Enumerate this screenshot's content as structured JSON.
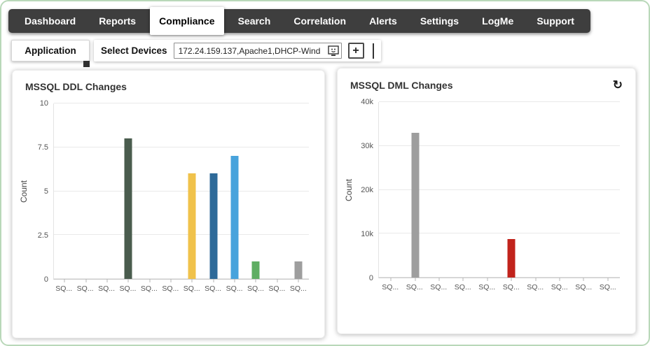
{
  "nav": {
    "items": [
      {
        "label": "Dashboard",
        "active": false
      },
      {
        "label": "Reports",
        "active": false
      },
      {
        "label": "Compliance",
        "active": true
      },
      {
        "label": "Search",
        "active": false
      },
      {
        "label": "Correlation",
        "active": false
      },
      {
        "label": "Alerts",
        "active": false
      },
      {
        "label": "Settings",
        "active": false
      },
      {
        "label": "LogMe",
        "active": false
      },
      {
        "label": "Support",
        "active": false
      }
    ]
  },
  "toolbar": {
    "application_tab": "Application",
    "select_devices_label": "Select Devices",
    "device_input_value": "172.24.159.137,Apache1,DHCP-Wind",
    "add_button_label": "+"
  },
  "icons": {
    "refresh": "↻",
    "device_picker": "device-picker-icon"
  },
  "chart_data": [
    {
      "type": "bar",
      "title": "MSSQL DDL Changes",
      "xlabel": "",
      "ylabel": "Count",
      "ylim": [
        0,
        10
      ],
      "grid": true,
      "legend": "none",
      "yticks": [
        {
          "label": "0",
          "value": 0
        },
        {
          "label": "2.5",
          "value": 2.5
        },
        {
          "label": "5",
          "value": 5
        },
        {
          "label": "7.5",
          "value": 7.5
        },
        {
          "label": "10",
          "value": 10
        }
      ],
      "categories": [
        "SQ...",
        "SQ...",
        "SQ...",
        "SQ...",
        "SQ...",
        "SQ...",
        "SQ...",
        "SQ...",
        "SQ...",
        "SQ...",
        "SQ...",
        "SQ..."
      ],
      "values": [
        0,
        0,
        0,
        8,
        0,
        0,
        6,
        6,
        7,
        1,
        0,
        1
      ],
      "bar_colors": [
        "",
        "",
        "",
        "#4a5c4e",
        "",
        "",
        "#f0c24b",
        "#2e6a99",
        "#48a3dc",
        "#5fae63",
        "",
        "#9e9e9e"
      ]
    },
    {
      "type": "bar",
      "title": "MSSQL DML Changes",
      "xlabel": "",
      "ylabel": "Count",
      "ylim": [
        0,
        40000
      ],
      "grid": true,
      "legend": "none",
      "yticks": [
        {
          "label": "0",
          "value": 0
        },
        {
          "label": "10k",
          "value": 10000
        },
        {
          "label": "20k",
          "value": 20000
        },
        {
          "label": "30k",
          "value": 30000
        },
        {
          "label": "40k",
          "value": 40000
        }
      ],
      "categories": [
        "SQ...",
        "SQ...",
        "SQ...",
        "SQ...",
        "SQ...",
        "SQ...",
        "SQ...",
        "SQ...",
        "SQ...",
        "SQ..."
      ],
      "values": [
        0,
        33000,
        0,
        0,
        0,
        8800,
        0,
        0,
        0,
        0
      ],
      "bar_colors": [
        "",
        "#9e9e9e",
        "",
        "",
        "",
        "#c1231c",
        "",
        "",
        "",
        ""
      ]
    }
  ]
}
